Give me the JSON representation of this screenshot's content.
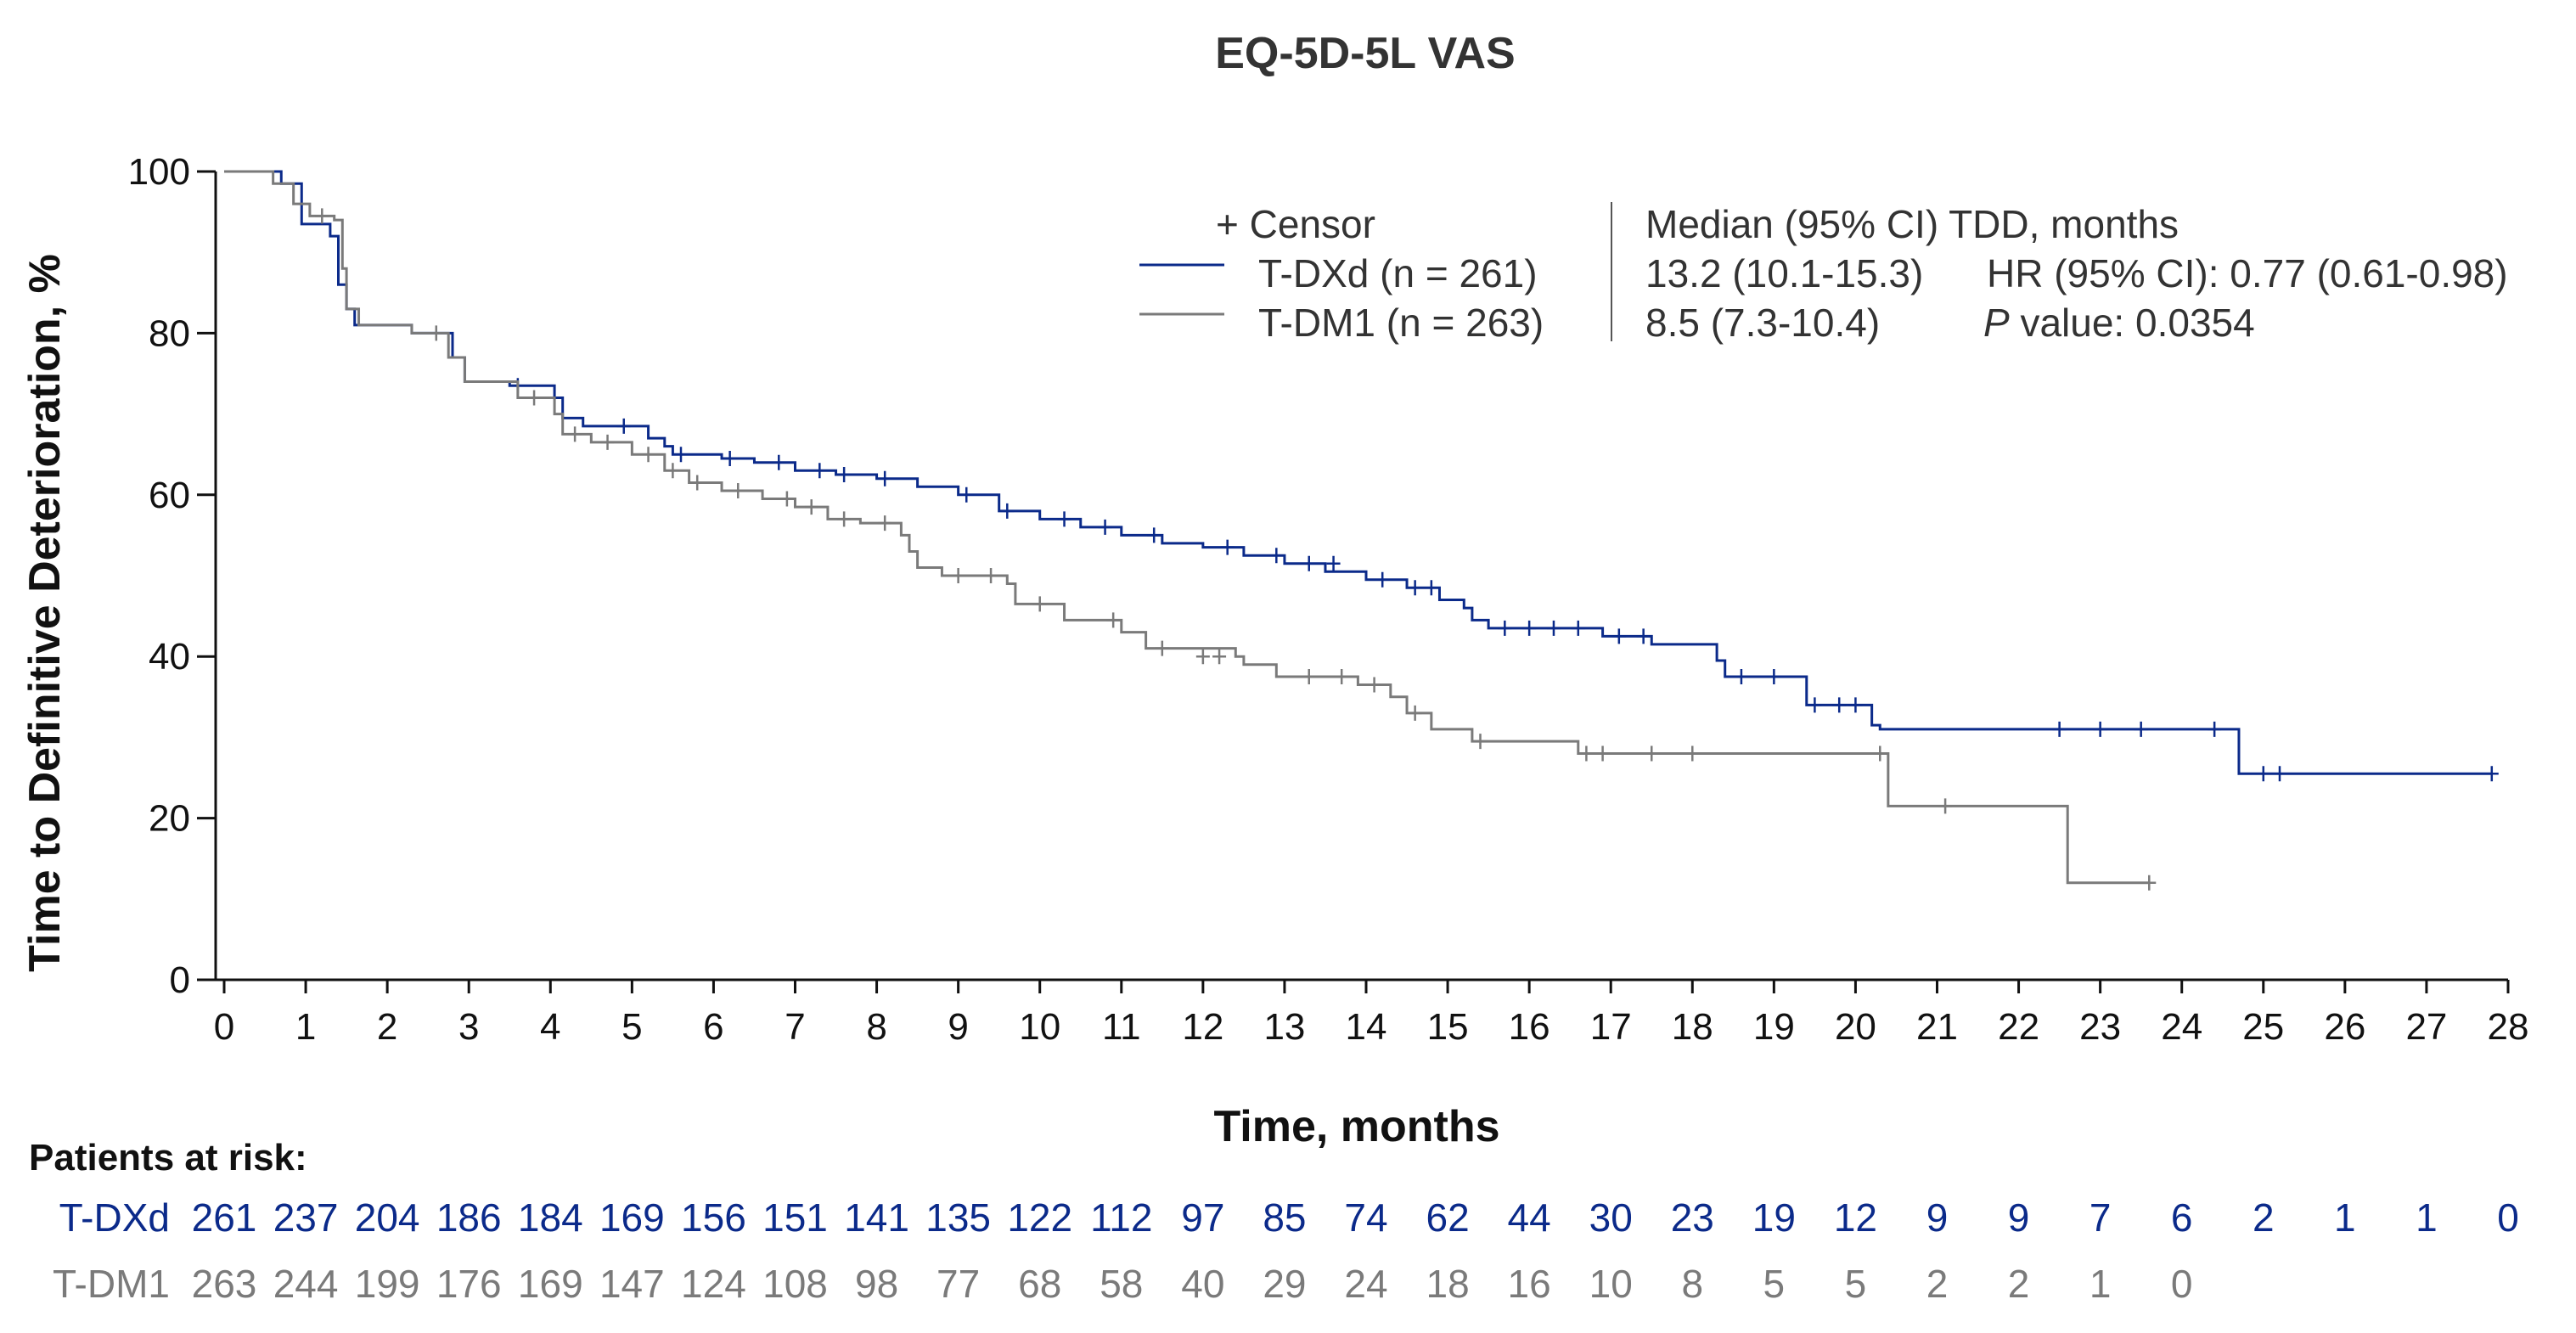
{
  "chart_data": {
    "type": "line",
    "title": "EQ-5D-5L VAS",
    "xlabel": "Time, months",
    "ylabel": "Time to Definitive Deterioration, %",
    "xlim": [
      0,
      28
    ],
    "ylim": [
      0,
      100
    ],
    "x_ticks": [
      "0",
      "1",
      "2",
      "3",
      "4",
      "5",
      "6",
      "7",
      "8",
      "9",
      "10",
      "11",
      "12",
      "13",
      "14",
      "15",
      "16",
      "17",
      "18",
      "19",
      "20",
      "21",
      "22",
      "23",
      "24",
      "25",
      "26",
      "27",
      "28"
    ],
    "y_ticks": [
      "0",
      "20",
      "40",
      "60",
      "80",
      "100"
    ],
    "grid": false,
    "legend": {
      "position": "top-right",
      "censor_label": "+ Censor",
      "median_header": "Median (95% CI) TDD, months",
      "hr_text": "HR (95% CI): 0.77 (0.61-0.98)",
      "p_italic": "P",
      "p_text": " value: 0.0354"
    },
    "series": [
      {
        "name": "T-DXd (n = 261)",
        "color": "#0b2a8a",
        "median_ci": "13.2 (10.1-15.3)",
        "steps": [
          [
            0,
            100
          ],
          [
            0.7,
            98.5
          ],
          [
            0.95,
            93.5
          ],
          [
            1.3,
            92
          ],
          [
            1.4,
            86
          ],
          [
            1.5,
            83
          ],
          [
            1.6,
            81
          ],
          [
            2.3,
            80
          ],
          [
            2.8,
            77
          ],
          [
            2.95,
            74
          ],
          [
            3.5,
            73.5
          ],
          [
            4.05,
            72
          ],
          [
            4.15,
            69.5
          ],
          [
            4.4,
            68.5
          ],
          [
            5.2,
            67
          ],
          [
            5.4,
            66
          ],
          [
            5.5,
            65
          ],
          [
            6.1,
            64.5
          ],
          [
            6.5,
            64
          ],
          [
            7.0,
            63
          ],
          [
            7.5,
            62.5
          ],
          [
            8.0,
            62
          ],
          [
            8.5,
            61
          ],
          [
            9.0,
            60
          ],
          [
            9.5,
            58
          ],
          [
            10.0,
            57
          ],
          [
            10.5,
            56
          ],
          [
            11.0,
            55
          ],
          [
            11.5,
            54
          ],
          [
            12.0,
            53.5
          ],
          [
            12.5,
            52.5
          ],
          [
            13.0,
            51.5
          ],
          [
            13.5,
            50.5
          ],
          [
            14.0,
            49.5
          ],
          [
            14.5,
            48.5
          ],
          [
            14.9,
            47
          ],
          [
            15.2,
            46
          ],
          [
            15.3,
            44.5
          ],
          [
            15.5,
            43.5
          ],
          [
            16.9,
            42.5
          ],
          [
            17.5,
            41.5
          ],
          [
            18.3,
            39.5
          ],
          [
            18.4,
            37.5
          ],
          [
            19.4,
            34
          ],
          [
            20.2,
            31.5
          ],
          [
            20.3,
            31
          ],
          [
            24.7,
            25.5
          ],
          [
            27.8,
            25.5
          ]
        ],
        "censors": [
          [
            3.6,
            73.5
          ],
          [
            4.9,
            68.5
          ],
          [
            5.6,
            65
          ],
          [
            6.2,
            64.5
          ],
          [
            6.8,
            64
          ],
          [
            7.3,
            63
          ],
          [
            7.6,
            62.5
          ],
          [
            8.1,
            62
          ],
          [
            9.1,
            60
          ],
          [
            9.6,
            58
          ],
          [
            10.3,
            57
          ],
          [
            10.8,
            56
          ],
          [
            11.4,
            55
          ],
          [
            12.3,
            53.5
          ],
          [
            12.9,
            52.5
          ],
          [
            13.3,
            51.5
          ],
          [
            13.6,
            51.5
          ],
          [
            14.2,
            49.5
          ],
          [
            14.6,
            48.5
          ],
          [
            14.8,
            48.5
          ],
          [
            15.7,
            43.5
          ],
          [
            16.0,
            43.5
          ],
          [
            16.3,
            43.5
          ],
          [
            16.6,
            43.5
          ],
          [
            17.1,
            42.5
          ],
          [
            17.4,
            42.5
          ],
          [
            18.6,
            37.5
          ],
          [
            19.0,
            37.5
          ],
          [
            19.5,
            34
          ],
          [
            19.8,
            34
          ],
          [
            20.0,
            34
          ],
          [
            22.5,
            31
          ],
          [
            23.0,
            31
          ],
          [
            23.5,
            31
          ],
          [
            24.4,
            31
          ],
          [
            25.0,
            25.5
          ],
          [
            25.2,
            25.5
          ],
          [
            27.8,
            25.5
          ]
        ],
        "at_risk": [
          261,
          237,
          204,
          186,
          184,
          169,
          156,
          151,
          141,
          135,
          122,
          112,
          97,
          85,
          74,
          62,
          44,
          30,
          23,
          19,
          12,
          9,
          9,
          7,
          6,
          2,
          1,
          1,
          0
        ]
      },
      {
        "name": "T-DM1 (n = 263)",
        "color": "#7a7a7a",
        "median_ci": "8.5 (7.3-10.4)",
        "steps": [
          [
            0,
            100
          ],
          [
            0.6,
            98.5
          ],
          [
            0.85,
            96
          ],
          [
            1.05,
            94.5
          ],
          [
            1.35,
            94
          ],
          [
            1.45,
            88
          ],
          [
            1.5,
            83
          ],
          [
            1.65,
            81
          ],
          [
            2.3,
            80
          ],
          [
            2.75,
            77
          ],
          [
            2.95,
            74
          ],
          [
            3.6,
            72
          ],
          [
            4.05,
            70
          ],
          [
            4.15,
            67.5
          ],
          [
            4.5,
            66.5
          ],
          [
            5.0,
            65
          ],
          [
            5.4,
            63
          ],
          [
            5.7,
            61.5
          ],
          [
            6.1,
            60.5
          ],
          [
            6.6,
            59.5
          ],
          [
            7.0,
            58.5
          ],
          [
            7.4,
            57
          ],
          [
            7.8,
            56.5
          ],
          [
            8.3,
            55
          ],
          [
            8.4,
            53
          ],
          [
            8.5,
            51
          ],
          [
            8.8,
            50
          ],
          [
            9.6,
            49
          ],
          [
            9.7,
            46.5
          ],
          [
            10.3,
            44.5
          ],
          [
            11.0,
            43
          ],
          [
            11.3,
            41
          ],
          [
            12.4,
            40
          ],
          [
            12.5,
            39
          ],
          [
            12.9,
            37.5
          ],
          [
            13.9,
            36.5
          ],
          [
            14.3,
            35
          ],
          [
            14.5,
            33
          ],
          [
            14.8,
            31
          ],
          [
            15.3,
            29.5
          ],
          [
            16.6,
            28
          ],
          [
            20.4,
            21.5
          ],
          [
            22.6,
            12
          ],
          [
            23.6,
            12
          ]
        ],
        "censors": [
          [
            1.2,
            94.5
          ],
          [
            2.6,
            80
          ],
          [
            3.8,
            72
          ],
          [
            4.3,
            67.5
          ],
          [
            4.7,
            66.5
          ],
          [
            5.2,
            65
          ],
          [
            5.5,
            63
          ],
          [
            5.8,
            61.5
          ],
          [
            6.3,
            60.5
          ],
          [
            6.9,
            59.5
          ],
          [
            7.2,
            58.5
          ],
          [
            7.6,
            57
          ],
          [
            8.1,
            56.5
          ],
          [
            9.0,
            50
          ],
          [
            9.4,
            50
          ],
          [
            10.0,
            46.5
          ],
          [
            10.9,
            44.5
          ],
          [
            11.5,
            41
          ],
          [
            12.0,
            40
          ],
          [
            12.2,
            40
          ],
          [
            13.3,
            37.5
          ],
          [
            13.7,
            37.5
          ],
          [
            14.1,
            36.5
          ],
          [
            14.6,
            33
          ],
          [
            15.4,
            29.5
          ],
          [
            16.7,
            28
          ],
          [
            16.9,
            28
          ],
          [
            17.5,
            28
          ],
          [
            18.0,
            28
          ],
          [
            20.3,
            28
          ],
          [
            21.1,
            21.5
          ],
          [
            23.6,
            12
          ]
        ],
        "at_risk": [
          263,
          244,
          199,
          176,
          169,
          147,
          124,
          108,
          98,
          77,
          68,
          58,
          40,
          29,
          24,
          18,
          16,
          10,
          8,
          5,
          5,
          2,
          2,
          1,
          0
        ]
      }
    ]
  },
  "risk_table": {
    "heading": "Patients at risk:",
    "row_labels": [
      "T-DXd",
      "T-DM1"
    ]
  }
}
